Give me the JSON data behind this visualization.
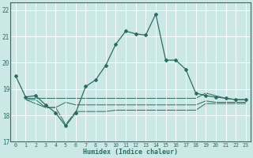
{
  "xlabel": "Humidex (Indice chaleur)",
  "xlim": [
    -0.5,
    23.5
  ],
  "ylim": [
    17,
    22.3
  ],
  "yticks": [
    17,
    18,
    19,
    20,
    21,
    22
  ],
  "xticks": [
    0,
    1,
    2,
    3,
    4,
    5,
    6,
    7,
    8,
    9,
    10,
    11,
    12,
    13,
    14,
    15,
    16,
    17,
    18,
    19,
    20,
    21,
    22,
    23
  ],
  "bg_color": "#cce8e6",
  "grid_color": "#ffffff",
  "line_color": "#2a6e62",
  "main_line": {
    "x": [
      0,
      1,
      2,
      3,
      4,
      5,
      6,
      7,
      8,
      9,
      10,
      11,
      12,
      13,
      14,
      15,
      16,
      17,
      18,
      19,
      20,
      21,
      22,
      23
    ],
    "y": [
      19.5,
      18.7,
      18.75,
      18.4,
      18.1,
      17.6,
      18.1,
      19.1,
      19.35,
      19.9,
      20.7,
      21.2,
      21.1,
      21.05,
      21.85,
      20.1,
      20.1,
      19.75,
      18.85,
      18.75,
      18.7,
      18.65,
      18.6,
      18.6
    ]
  },
  "flat_lines": [
    {
      "x": [
        1,
        2,
        3,
        4,
        5,
        6,
        7,
        8,
        9,
        10,
        11,
        12,
        13,
        14,
        15,
        16,
        17,
        18,
        19,
        20,
        21,
        22,
        23
      ],
      "y": [
        18.65,
        18.65,
        18.65,
        18.65,
        18.65,
        18.65,
        18.65,
        18.65,
        18.65,
        18.65,
        18.65,
        18.65,
        18.65,
        18.65,
        18.65,
        18.65,
        18.65,
        18.65,
        18.85,
        18.75,
        18.65,
        18.6,
        18.6
      ]
    },
    {
      "x": [
        1,
        2,
        3,
        4,
        5,
        6,
        7,
        8,
        9,
        10,
        11,
        12,
        13,
        14,
        15,
        16,
        17,
        18,
        19,
        20,
        21,
        22,
        23
      ],
      "y": [
        18.6,
        18.6,
        18.3,
        18.3,
        18.5,
        18.4,
        18.4,
        18.4,
        18.4,
        18.4,
        18.4,
        18.4,
        18.4,
        18.4,
        18.4,
        18.4,
        18.4,
        18.4,
        18.55,
        18.5,
        18.5,
        18.5,
        18.5
      ]
    },
    {
      "x": [
        1,
        3,
        4,
        5,
        6,
        7,
        8,
        9,
        10,
        11,
        12,
        13,
        14,
        15,
        16,
        17,
        18,
        19,
        20,
        21,
        22,
        23
      ],
      "y": [
        18.6,
        18.3,
        18.3,
        17.65,
        18.15,
        18.15,
        18.15,
        18.15,
        18.2,
        18.2,
        18.2,
        18.2,
        18.2,
        18.2,
        18.2,
        18.2,
        18.2,
        18.45,
        18.45,
        18.45,
        18.45,
        18.45
      ]
    }
  ]
}
